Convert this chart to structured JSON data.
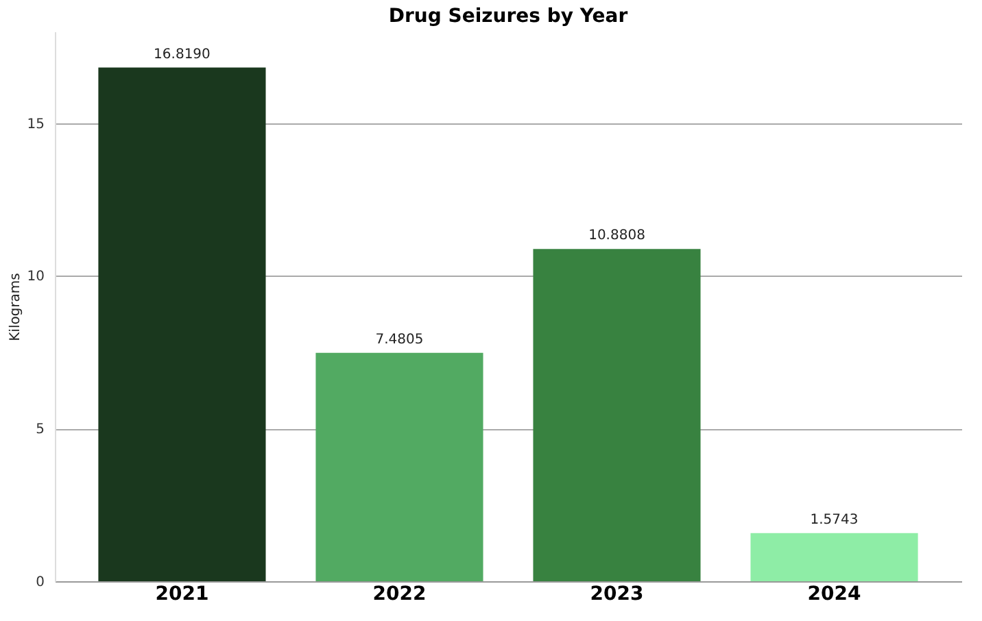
{
  "chart_data": {
    "type": "bar",
    "title": "Drug Seizures by Year",
    "ylabel": "Kilograms",
    "categories": [
      "2021",
      "2022",
      "2023",
      "2024"
    ],
    "values": [
      16.819,
      7.4805,
      10.8808,
      1.5743
    ],
    "colors": [
      "#1a381e",
      "#52aa62",
      "#388240",
      "#8eeda6"
    ],
    "value_labels": [
      "16.8190",
      "7.4805",
      "10.8808",
      "1.5743"
    ],
    "ylim": [
      0,
      18
    ],
    "yticks": [
      0,
      5,
      10,
      15
    ],
    "grid": "y"
  }
}
